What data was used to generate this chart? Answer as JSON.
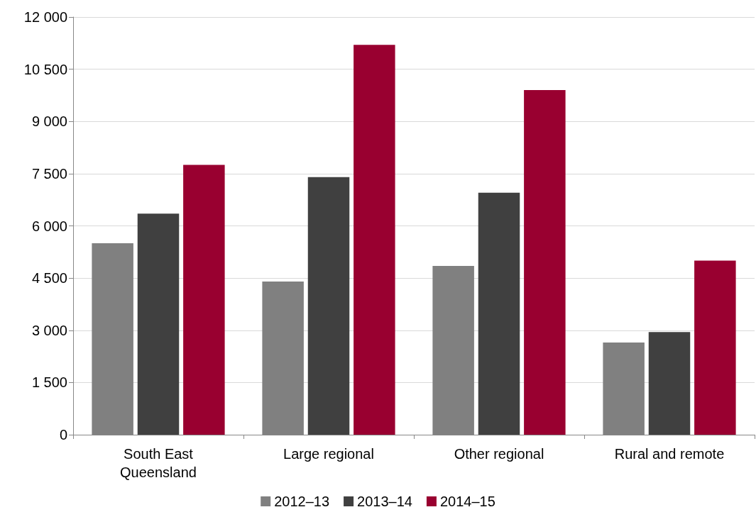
{
  "chart_data": {
    "type": "bar",
    "categories": [
      "South East\nQueensland",
      "Large regional",
      "Other regional",
      "Rural and remote"
    ],
    "series": [
      {
        "name": "2012–13",
        "color": "#808080",
        "values": [
          5500,
          4400,
          4850,
          2650
        ]
      },
      {
        "name": "2013–14",
        "color": "#404040",
        "values": [
          6350,
          7400,
          6950,
          2950
        ]
      },
      {
        "name": "2014–15",
        "color": "#990030",
        "values": [
          7750,
          11200,
          9900,
          5000
        ]
      }
    ],
    "ylim": [
      0,
      12000
    ],
    "yticks": [
      0,
      {
        "value": 1500,
        "label": "1 500"
      },
      {
        "value": 3000,
        "label": "3 000"
      },
      {
        "value": 4500,
        "label": "4 500"
      },
      {
        "value": 6000,
        "label": "6 000"
      },
      {
        "value": 7500,
        "label": "7 500"
      },
      {
        "value": 9000,
        "label": "9 000"
      },
      {
        "value": 10500,
        "label": "10 500"
      },
      {
        "value": 12000,
        "label": "12 000"
      }
    ],
    "grid": "y",
    "legend": "bottom"
  }
}
